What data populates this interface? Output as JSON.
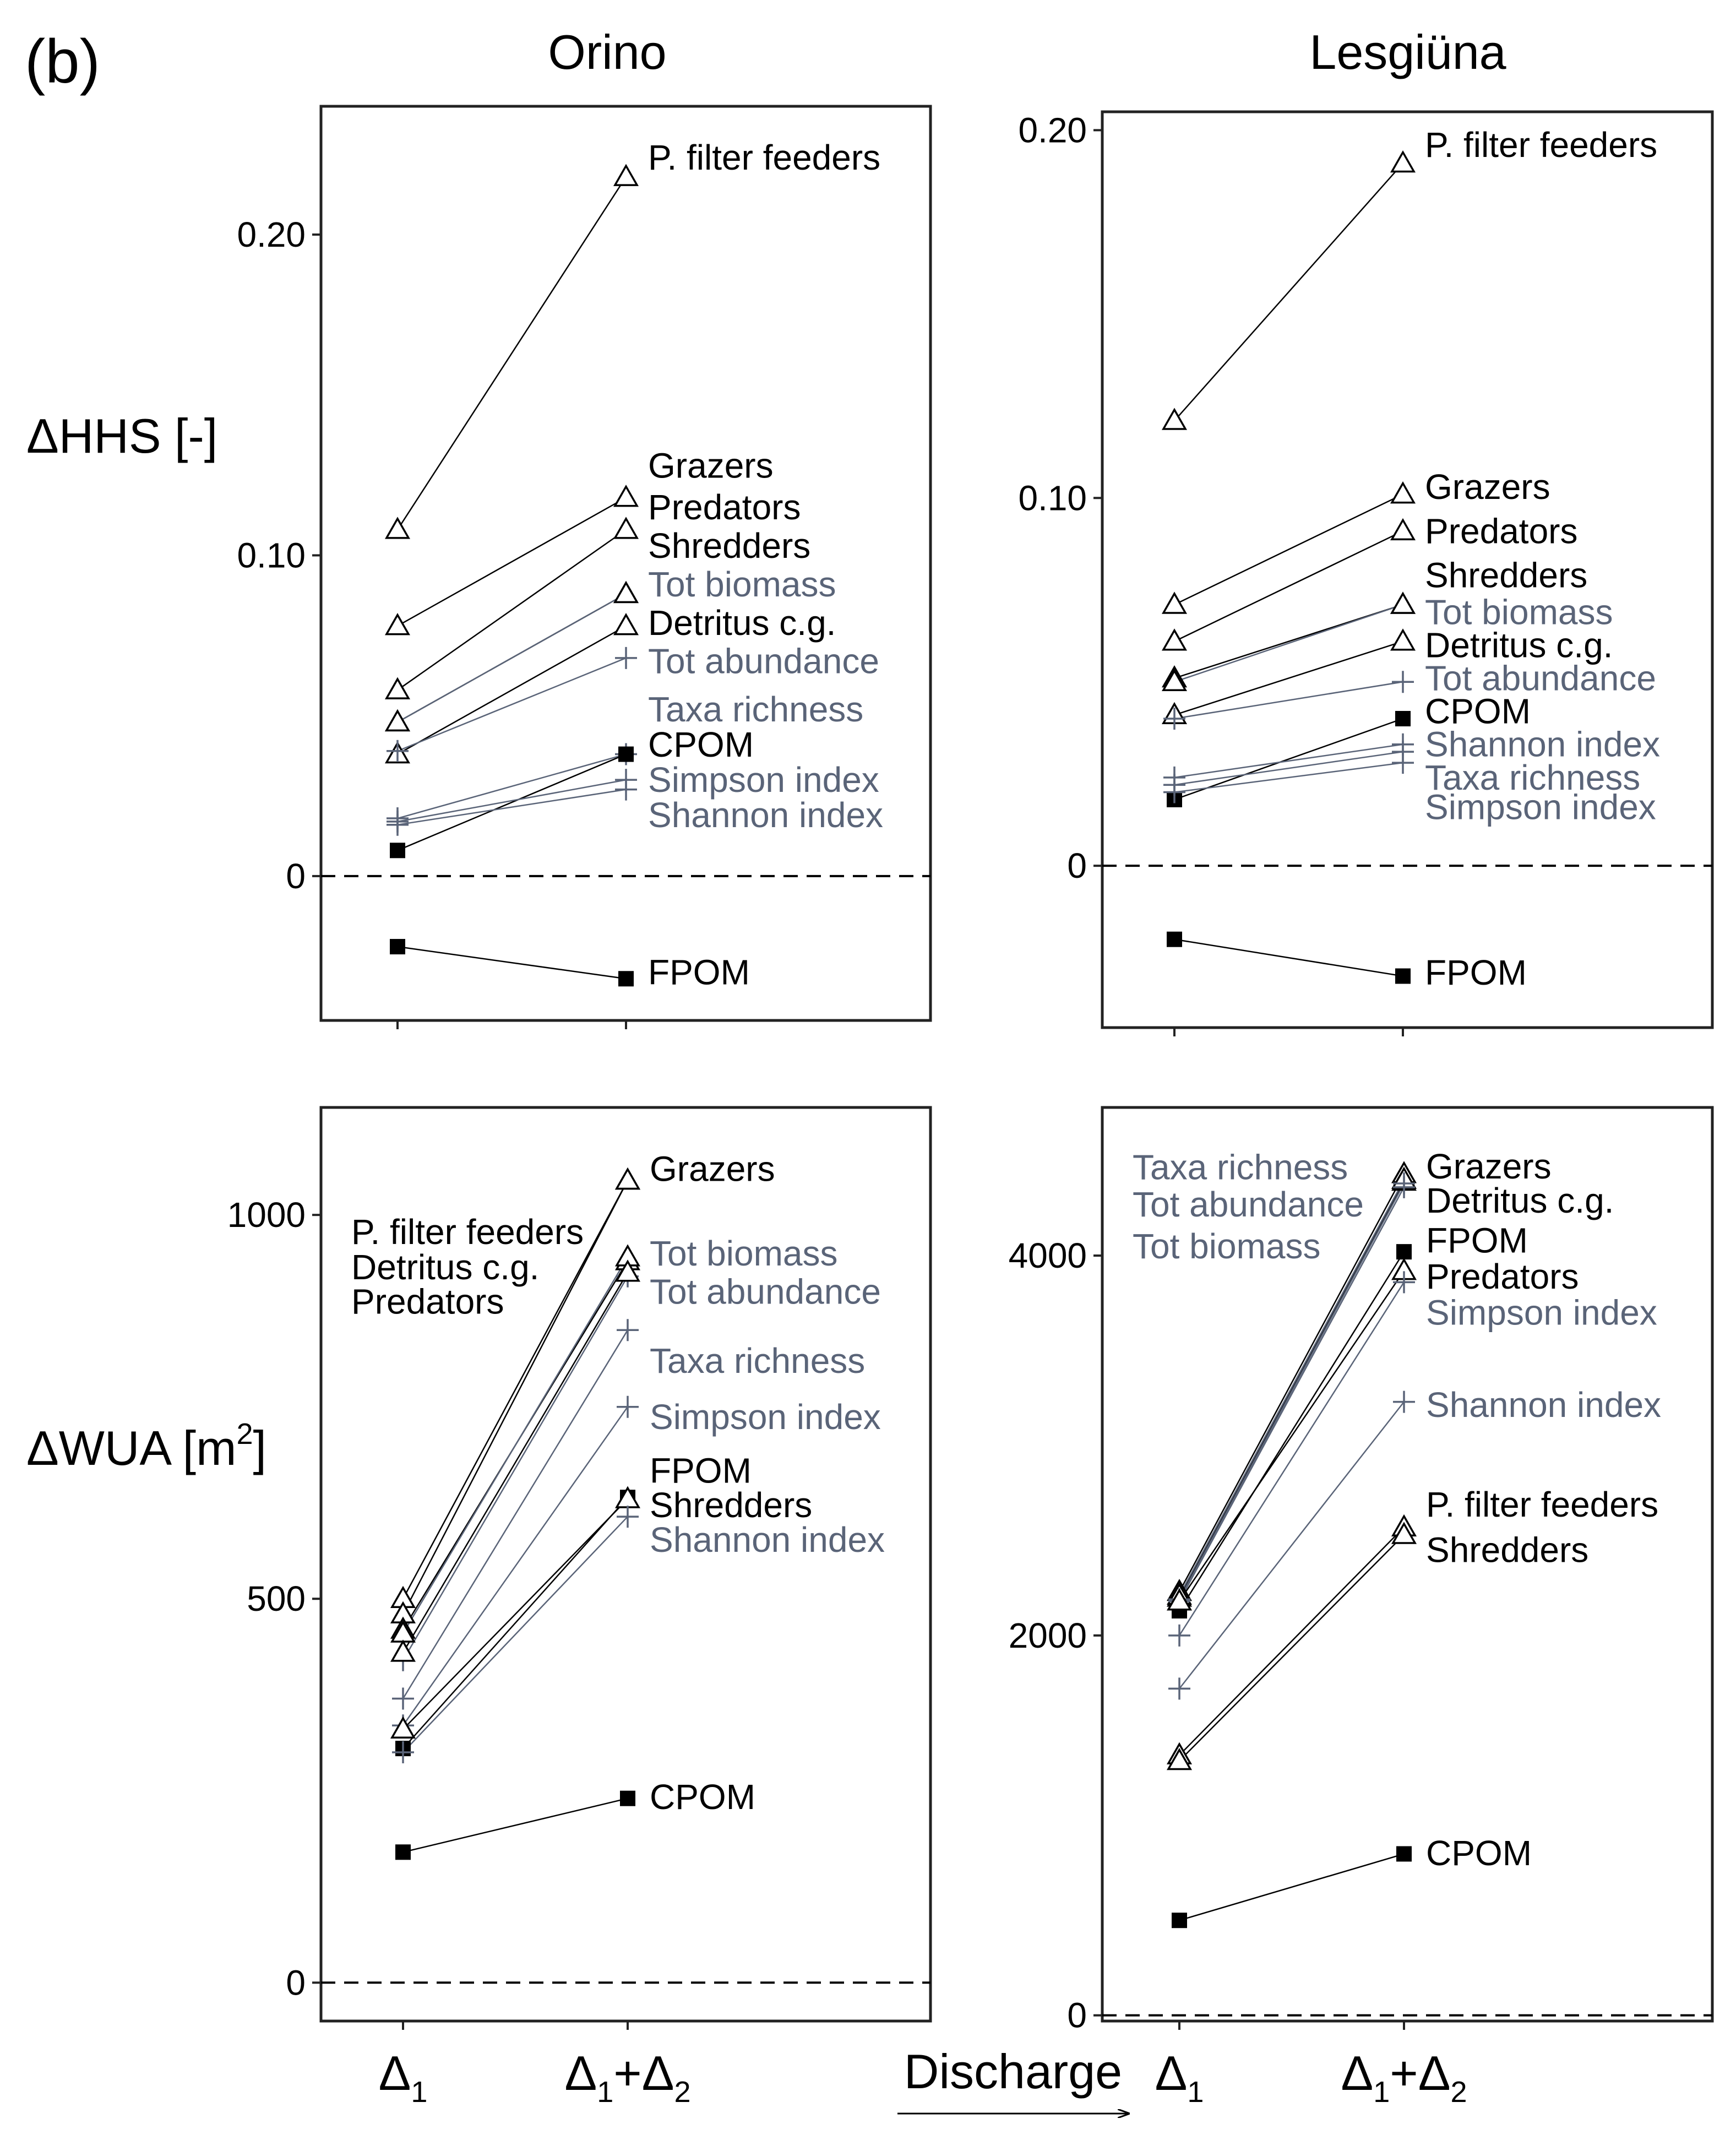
{
  "figure": {
    "panel_letter": "(b)",
    "col_titles": [
      "Orino",
      "Lesgiüna"
    ],
    "ylabels": {
      "hhs": "ΔHHS [-]",
      "wua_main": "ΔWUA [m",
      "wua_sup": "2",
      "wua_end": "]"
    },
    "xlabel": "Discharge",
    "xtick_main": "Δ",
    "xtick_sub": "1",
    "xtick_plus": "+",
    "xtick_sub2": "2"
  },
  "colors": {
    "black": "#000000",
    "blue": "#5a6478"
  },
  "chart_data": [
    {
      "id": "orino-hhs",
      "type": "line",
      "title": "Orino",
      "ylabel": "ΔHHS [-]",
      "categories": [
        "Δ1",
        "Δ1+Δ2"
      ],
      "ylim": [
        -0.045,
        0.24
      ],
      "yticks": [
        0,
        0.1,
        0.2
      ],
      "ytick_labels": [
        "0",
        "0.10",
        "0.20"
      ],
      "series": [
        {
          "name": "P. filter feeders",
          "marker": "triangle",
          "color": "black",
          "values": [
            0.108,
            0.218
          ],
          "label": {
            "text": "P. filter feeders",
            "y": 0.224
          }
        },
        {
          "name": "Grazers",
          "marker": "triangle",
          "color": "black",
          "values": [
            0.078,
            0.118
          ],
          "label": {
            "text": "Grazers",
            "y": 0.128
          }
        },
        {
          "name": "Predators",
          "marker": "triangle",
          "color": "black",
          "values": [
            0.058,
            0.108
          ],
          "label": {
            "text": "Predators",
            "y": 0.115
          }
        },
        {
          "name": "Shredders",
          "marker": "triangle",
          "color": "black",
          "values": [
            0.048,
            0.088
          ],
          "label": {
            "text": "Shredders",
            "y": 0.103
          }
        },
        {
          "name": "Tot biomass",
          "marker": "triangle",
          "color": "blue",
          "values": [
            0.048,
            0.088
          ],
          "label": {
            "text": "Tot biomass",
            "y": 0.091
          }
        },
        {
          "name": "Detritus c.g.",
          "marker": "triangle",
          "color": "black",
          "values": [
            0.038,
            0.078
          ],
          "label": {
            "text": "Detritus c.g.",
            "y": 0.079
          }
        },
        {
          "name": "Tot abundance",
          "marker": "plus",
          "color": "blue",
          "values": [
            0.039,
            0.068
          ],
          "label": {
            "text": "Tot abundance",
            "y": 0.067
          }
        },
        {
          "name": "Taxa richness",
          "marker": "plus",
          "color": "blue",
          "values": [
            0.018,
            0.038
          ],
          "label": {
            "text": "Taxa richness",
            "y": 0.052
          }
        },
        {
          "name": "CPOM",
          "marker": "square",
          "color": "black",
          "values": [
            0.008,
            0.038
          ],
          "label": {
            "text": "CPOM",
            "y": 0.041
          }
        },
        {
          "name": "Simpson index",
          "marker": "plus",
          "color": "blue",
          "values": [
            0.017,
            0.03
          ],
          "label": {
            "text": "Simpson index",
            "y": 0.03
          }
        },
        {
          "name": "Shannon index",
          "marker": "plus",
          "color": "blue",
          "values": [
            0.016,
            0.027
          ],
          "label": {
            "text": "Shannon index",
            "y": 0.019
          }
        },
        {
          "name": "FPOM",
          "marker": "square",
          "color": "black",
          "values": [
            -0.022,
            -0.032
          ],
          "label": {
            "text": "FPOM",
            "y": -0.03
          }
        }
      ]
    },
    {
      "id": "lesgiuna-hhs",
      "type": "line",
      "title": "Lesgiüna",
      "ylabel": "ΔHHS [-]",
      "categories": [
        "Δ1",
        "Δ1+Δ2"
      ],
      "ylim": [
        -0.044,
        0.205
      ],
      "yticks": [
        0,
        0.1,
        0.2
      ],
      "ytick_labels": [
        "0",
        "0.10",
        "0.20"
      ],
      "series": [
        {
          "name": "P. filter feeders",
          "marker": "triangle",
          "color": "black",
          "values": [
            0.121,
            0.191
          ],
          "label": {
            "text": "P. filter feeders",
            "y": 0.196
          }
        },
        {
          "name": "Grazers",
          "marker": "triangle",
          "color": "black",
          "values": [
            0.071,
            0.101
          ],
          "label": {
            "text": "Grazers",
            "y": 0.103
          }
        },
        {
          "name": "Predators",
          "marker": "triangle",
          "color": "black",
          "values": [
            0.061,
            0.091
          ],
          "label": {
            "text": "Predators",
            "y": 0.091
          }
        },
        {
          "name": "Shredders",
          "marker": "triangle",
          "color": "black",
          "values": [
            0.051,
            0.071
          ],
          "label": {
            "text": "Shredders",
            "y": 0.079
          }
        },
        {
          "name": "Tot biomass",
          "marker": "triangle",
          "color": "blue",
          "values": [
            0.05,
            0.071
          ],
          "label": {
            "text": "Tot biomass",
            "y": 0.069
          }
        },
        {
          "name": "Detritus c.g.",
          "marker": "triangle",
          "color": "black",
          "values": [
            0.041,
            0.061
          ],
          "label": {
            "text": "Detritus c.g.",
            "y": 0.06
          }
        },
        {
          "name": "Tot abundance",
          "marker": "plus",
          "color": "blue",
          "values": [
            0.04,
            0.05
          ],
          "label": {
            "text": "Tot abundance",
            "y": 0.051
          }
        },
        {
          "name": "CPOM",
          "marker": "square",
          "color": "black",
          "values": [
            0.018,
            0.04
          ],
          "label": {
            "text": "CPOM",
            "y": 0.042
          }
        },
        {
          "name": "Shannon index",
          "marker": "plus",
          "color": "blue",
          "values": [
            0.024,
            0.033
          ],
          "label": {
            "text": "Shannon index",
            "y": 0.033
          }
        },
        {
          "name": "Taxa richness",
          "marker": "plus",
          "color": "blue",
          "values": [
            0.022,
            0.031
          ],
          "label": {
            "text": "Taxa richness",
            "y": 0.024
          }
        },
        {
          "name": "Simpson index",
          "marker": "plus",
          "color": "blue",
          "values": [
            0.02,
            0.028
          ],
          "label": {
            "text": "Simpson index",
            "y": 0.016
          }
        },
        {
          "name": "FPOM",
          "marker": "square",
          "color": "black",
          "values": [
            -0.02,
            -0.03
          ],
          "label": {
            "text": "FPOM",
            "y": -0.029
          }
        }
      ]
    },
    {
      "id": "orino-wua",
      "type": "line",
      "title": "",
      "ylabel": "ΔWUA [m2]",
      "categories": [
        "Δ1",
        "Δ1+Δ2"
      ],
      "ylim": [
        -50,
        1140
      ],
      "yticks": [
        0,
        500,
        1000
      ],
      "ytick_labels": [
        "0",
        "500",
        "1000"
      ],
      "series": [
        {
          "name": "P. filter feeders",
          "marker": "triangle",
          "color": "black",
          "values": [
            500,
            1045
          ],
          "label": null
        },
        {
          "name": "Grazers",
          "marker": "triangle",
          "color": "black",
          "values": [
            480,
            1045
          ],
          "label": {
            "text": "Grazers",
            "y": 1060
          }
        },
        {
          "name": "Detritus c.g.",
          "marker": "triangle",
          "color": "black",
          "values": [
            460,
            940
          ],
          "label": null
        },
        {
          "name": "Tot biomass",
          "marker": "triangle",
          "color": "blue",
          "values": [
            455,
            945
          ],
          "label": {
            "text": "Tot biomass",
            "y": 950
          }
        },
        {
          "name": "Tot abundance",
          "marker": "plus",
          "color": "blue",
          "values": [
            420,
            920
          ],
          "label": {
            "text": "Tot abundance",
            "y": 900
          }
        },
        {
          "name": "Predators",
          "marker": "triangle",
          "color": "black",
          "values": [
            430,
            925
          ],
          "label": null
        },
        {
          "name": "Taxa richness",
          "marker": "plus",
          "color": "blue",
          "values": [
            370,
            850
          ],
          "label": {
            "text": "Taxa richness",
            "y": 810
          }
        },
        {
          "name": "Simpson index",
          "marker": "plus",
          "color": "blue",
          "values": [
            335,
            750
          ],
          "label": {
            "text": "Simpson index",
            "y": 737
          }
        },
        {
          "name": "FPOM",
          "marker": "square",
          "color": "black",
          "values": [
            305,
            632
          ],
          "label": {
            "text": "FPOM",
            "y": 667
          }
        },
        {
          "name": "Shredders",
          "marker": "triangle",
          "color": "black",
          "values": [
            330,
            630
          ],
          "label": {
            "text": "Shredders",
            "y": 622
          }
        },
        {
          "name": "Shannon index",
          "marker": "plus",
          "color": "blue",
          "values": [
            300,
            607
          ],
          "label": {
            "text": "Shannon index",
            "y": 577
          }
        },
        {
          "name": "CPOM",
          "marker": "square",
          "color": "black",
          "values": [
            170,
            240
          ],
          "label": {
            "text": "CPOM",
            "y": 242
          }
        }
      ],
      "annotations": [
        {
          "text": "P. filter feeders",
          "y": 978
        },
        {
          "text": "Detritus c.g.",
          "y": 932
        },
        {
          "text": "Predators",
          "y": 887
        }
      ]
    },
    {
      "id": "lesgiuna-wua",
      "type": "line",
      "title": "",
      "ylabel": "ΔWUA [m2]",
      "categories": [
        "Δ1",
        "Δ1+Δ2"
      ],
      "ylim": [
        -30,
        4780
      ],
      "yticks": [
        0,
        2000,
        4000
      ],
      "ytick_labels": [
        "0",
        "2000",
        "4000"
      ],
      "series": [
        {
          "name": "Grazers",
          "marker": "triangle",
          "color": "black",
          "values": [
            2230,
            4430
          ],
          "label": {
            "text": "Grazers",
            "y": 4470
          }
        },
        {
          "name": "Detritus c.g.",
          "marker": "triangle",
          "color": "black",
          "values": [
            2200,
            4390
          ],
          "label": {
            "text": "Detritus c.g.",
            "y": 4290
          }
        },
        {
          "name": "Tot biomass",
          "marker": "triangle",
          "color": "blue",
          "values": [
            2210,
            4400
          ],
          "label": null
        },
        {
          "name": "Tot abundance",
          "marker": "plus",
          "color": "blue",
          "values": [
            2190,
            4380
          ],
          "label": null
        },
        {
          "name": "Taxa richness",
          "marker": "plus",
          "color": "blue",
          "values": [
            2180,
            4360
          ],
          "label": null
        },
        {
          "name": "FPOM",
          "marker": "square",
          "color": "black",
          "values": [
            2130,
            4020
          ],
          "label": {
            "text": "FPOM",
            "y": 4080
          }
        },
        {
          "name": "Predators",
          "marker": "triangle",
          "color": "black",
          "values": [
            2180,
            3920
          ],
          "label": {
            "text": "Predators",
            "y": 3890
          }
        },
        {
          "name": "Simpson index",
          "marker": "plus",
          "color": "blue",
          "values": [
            2000,
            3860
          ],
          "label": {
            "text": "Simpson index",
            "y": 3700
          }
        },
        {
          "name": "Shannon index",
          "marker": "plus",
          "color": "blue",
          "values": [
            1720,
            3230
          ],
          "label": {
            "text": "Shannon index",
            "y": 3215
          }
        },
        {
          "name": "P. filter feeders",
          "marker": "triangle",
          "color": "black",
          "values": [
            1370,
            2570
          ],
          "label": {
            "text": "P. filter feeders",
            "y": 2690
          }
        },
        {
          "name": "Shredders",
          "marker": "triangle",
          "color": "black",
          "values": [
            1340,
            2530
          ],
          "label": {
            "text": "Shredders",
            "y": 2450
          }
        },
        {
          "name": "CPOM",
          "marker": "square",
          "color": "black",
          "values": [
            500,
            850
          ],
          "label": {
            "text": "CPOM",
            "y": 855
          }
        }
      ],
      "annotations": [
        {
          "text": "Taxa richness",
          "y": 4465
        },
        {
          "text": "Tot abundance",
          "y": 4270
        },
        {
          "text": "Tot biomass",
          "y": 4050
        }
      ]
    }
  ]
}
